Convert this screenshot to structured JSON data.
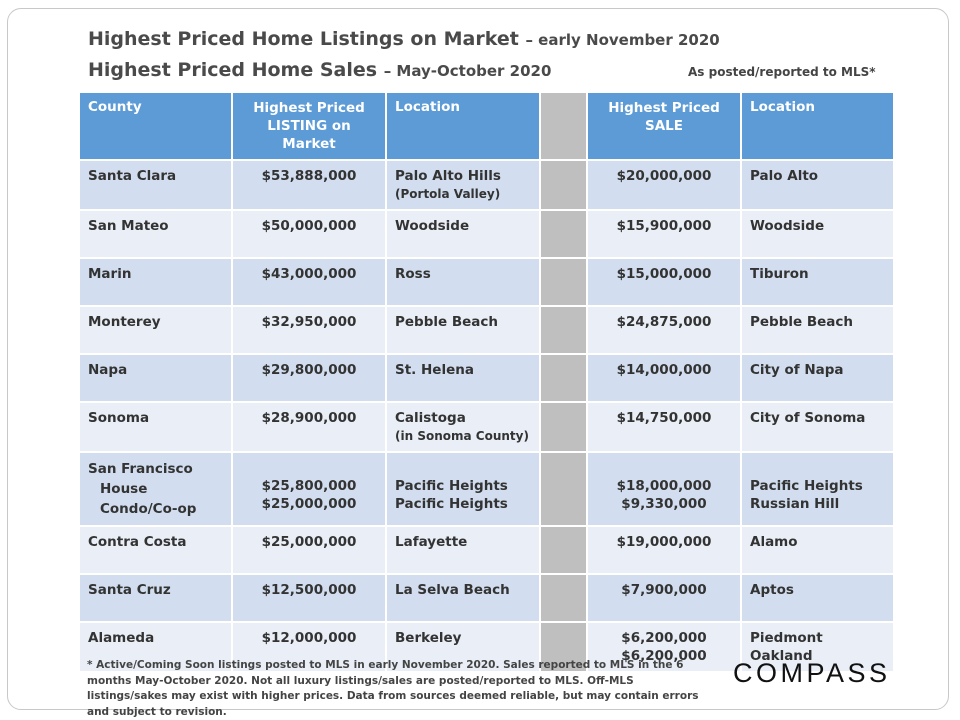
{
  "title_line1": {
    "main": "Highest Priced Home Listings on Market",
    "sub": "– early November 2020"
  },
  "title_line2": {
    "main": "Highest Priced Home Sales",
    "sub": "– May-October 2020"
  },
  "source_note": "As posted/reported to MLS*",
  "headers": {
    "county": "County",
    "listing_line1": "Highest Priced",
    "listing_line2": "LISTING on Market",
    "location1": "Location",
    "sale_line1": "Highest Priced",
    "sale_line2": "SALE",
    "location2": "Location"
  },
  "rows": [
    {
      "county": "Santa Clara",
      "listing": "$53,888,000",
      "location1": "Palo Alto Hills",
      "location1_note": "(Portola Valley)",
      "sale": "$20,000,000",
      "location2": "Palo Alto"
    },
    {
      "county": "San Mateo",
      "listing": "$50,000,000",
      "location1": "Woodside",
      "sale": "$15,900,000",
      "location2": "Woodside"
    },
    {
      "county": "Marin",
      "listing": "$43,000,000",
      "location1": "Ross",
      "sale": "$15,000,000",
      "location2": "Tiburon"
    },
    {
      "county": "Monterey",
      "listing": "$32,950,000",
      "location1": "Pebble Beach",
      "sale": "$24,875,000",
      "location2": "Pebble Beach"
    },
    {
      "county": "Napa",
      "listing": "$29,800,000",
      "location1": "St. Helena",
      "sale": "$14,000,000",
      "location2": "City of Napa"
    },
    {
      "county": "Sonoma",
      "listing": "$28,900,000",
      "location1": "Calistoga",
      "location1_note": "(in Sonoma County)",
      "sale": "$14,750,000",
      "location2": "City of Sonoma"
    },
    {
      "county": "San Francisco",
      "sub1": "House",
      "sub2": "Condo/Co-op",
      "listing_a": "$25,800,000",
      "listing_b": "$25,000,000",
      "location1_a": "Pacific Heights",
      "location1_b": "Pacific Heights",
      "sale_a": "$18,000,000",
      "sale_b": "$9,330,000",
      "location2_a": "Pacific Heights",
      "location2_b": "Russian Hill"
    },
    {
      "county": "Contra Costa",
      "listing": "$25,000,000",
      "location1": "Lafayette",
      "sale": "$19,000,000",
      "location2": "Alamo"
    },
    {
      "county": "Santa Cruz",
      "listing": "$12,500,000",
      "location1": "La Selva Beach",
      "sale": "$7,900,000",
      "location2": "Aptos"
    },
    {
      "county": "Alameda",
      "listing": "$12,000,000",
      "location1": "Berkeley",
      "sale_a": "$6,200,000",
      "sale_b": "$6,200,000",
      "location2_a": "Piedmont",
      "location2_b": "Oakland"
    }
  ],
  "footer": "* Active/Coming Soon listings posted to MLS in early November 2020. Sales reported to MLS in the 6 months May-October 2020. Not all luxury listings/sales are posted/reported to MLS. Off-MLS listings/sakes may exist with higher prices. Data from sources deemed reliable, but may contain errors and subject to revision.",
  "logo": "COMPASS"
}
